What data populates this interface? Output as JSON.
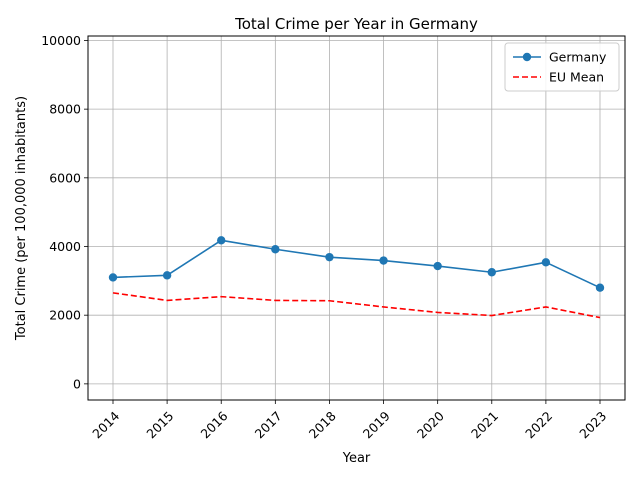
{
  "chart_data": {
    "type": "line",
    "title": "Total Crime per Year in Germany",
    "xlabel": "Year",
    "ylabel": "Total Crime (per 100,000 inhabitants)",
    "categories": [
      "2014",
      "2015",
      "2016",
      "2017",
      "2018",
      "2019",
      "2020",
      "2021",
      "2022",
      "2023"
    ],
    "ylim": [
      -470,
      10130
    ],
    "yticks": [
      0,
      2000,
      4000,
      6000,
      8000,
      10000
    ],
    "grid": true,
    "legend_position": "top-right",
    "series": [
      {
        "name": "Germany",
        "values": [
          3100,
          3160,
          4180,
          3920,
          3690,
          3590,
          3430,
          3250,
          3540,
          2800
        ],
        "color": "#1f77b4",
        "style": "solid",
        "marker": "circle"
      },
      {
        "name": "EU Mean",
        "values": [
          2650,
          2430,
          2540,
          2430,
          2420,
          2240,
          2080,
          1990,
          2240,
          1930
        ],
        "color": "#ff0000",
        "style": "dashed",
        "marker": "none"
      }
    ]
  }
}
